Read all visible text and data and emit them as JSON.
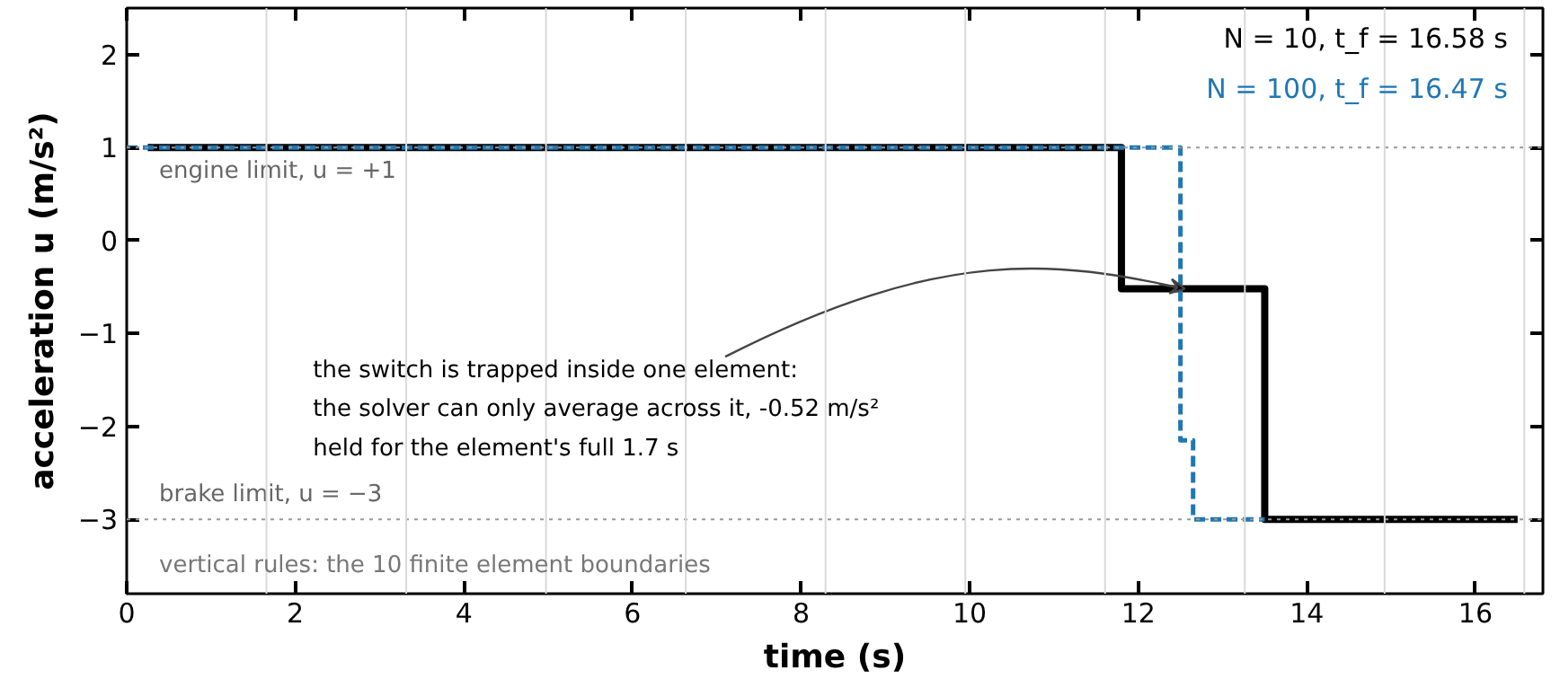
{
  "chart_data": {
    "type": "step",
    "xlabel": "time (s)",
    "ylabel": "acceleration u (m/s²)",
    "xlim": [
      0,
      16.8
    ],
    "ylim": [
      -3.8,
      2.5
    ],
    "xticks": [
      0,
      2,
      4,
      6,
      8,
      10,
      12,
      14,
      16
    ],
    "yticks": [
      {
        "value": -3,
        "label": "−3"
      },
      {
        "value": -2,
        "label": "−2"
      },
      {
        "value": -1,
        "label": "−1"
      },
      0,
      1,
      2
    ],
    "series": [
      {
        "name": "N = 100,   t_f = 16.47 s",
        "color": "#1f77b4",
        "line_style": "dashed",
        "x": [
          0,
          12.5,
          12.65,
          13.5
        ],
        "values": [
          1,
          -2.15,
          -3,
          -3
        ]
      },
      {
        "name": "N = 10,   t_f = 16.58 s",
        "color": "#000000",
        "line_style": "solid",
        "x": [
          0.25,
          11.8,
          13.5,
          16.5
        ],
        "values": [
          1,
          -0.52,
          -3,
          -3
        ]
      }
    ],
    "ref_lines": [
      {
        "axis": "y",
        "value": 1,
        "label": "engine limit,  u = +1",
        "color": "#999999",
        "line_style": "dotted"
      },
      {
        "axis": "y",
        "value": -3,
        "label": "brake limit,  u = −3",
        "color": "#999999",
        "line_style": "dotted"
      },
      {
        "axis": "x",
        "value": 1.658,
        "color": "#d9d9d9"
      },
      {
        "axis": "x",
        "value": 3.316,
        "color": "#d9d9d9"
      },
      {
        "axis": "x",
        "value": 4.974,
        "color": "#d9d9d9"
      },
      {
        "axis": "x",
        "value": 6.632,
        "color": "#d9d9d9"
      },
      {
        "axis": "x",
        "value": 8.29,
        "color": "#d9d9d9"
      },
      {
        "axis": "x",
        "value": 9.948,
        "color": "#d9d9d9"
      },
      {
        "axis": "x",
        "value": 11.606,
        "color": "#d9d9d9"
      },
      {
        "axis": "x",
        "value": 13.264,
        "color": "#d9d9d9"
      },
      {
        "axis": "x",
        "value": 14.922,
        "color": "#d9d9d9"
      },
      {
        "axis": "x",
        "value": 16.58,
        "color": "#d9d9d9"
      }
    ],
    "annotations": [
      {
        "text": "the switch is trapped inside one element:\nthe solver can only average across it, -0.52 m/s²\nheld for the element's full 1.7 s",
        "x": 12.55,
        "y": -0.52
      },
      "vertical rules: the 10 finite element boundaries"
    ],
    "legend": "top right",
    "grid": false
  }
}
